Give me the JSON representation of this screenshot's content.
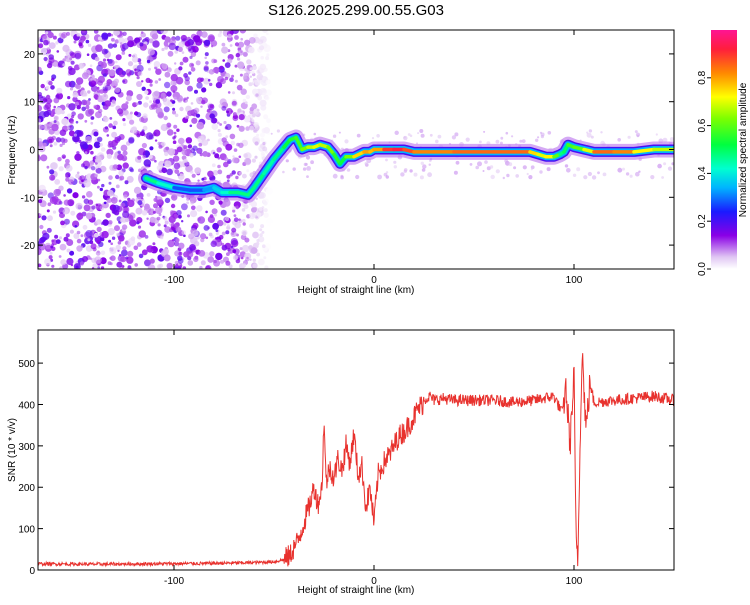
{
  "figure": {
    "title": "S126.2025.299.00.55.G03"
  },
  "chart_data": [
    {
      "type": "heatmap",
      "name": "spectrogram",
      "xlabel": "Height of straight line (km)",
      "ylabel": "Frequency (Hz)",
      "xlim": [
        -168,
        150
      ],
      "ylim": [
        -25,
        25
      ],
      "xticks": [
        -100,
        0,
        100
      ],
      "yticks": [
        -20,
        -10,
        0,
        10,
        20
      ],
      "noise_region_x": [
        -168,
        -60
      ],
      "ridge": {
        "x": [
          -114,
          -108,
          -100,
          -92,
          -85,
          -80,
          -76,
          -72,
          -68,
          -63,
          -60,
          -55,
          -50,
          -45,
          -42,
          -39,
          -36,
          -33,
          -30,
          -27,
          -23,
          -20,
          -17,
          -14,
          -10,
          -5,
          -2,
          0,
          5,
          10,
          15,
          20,
          30,
          40,
          50,
          60,
          70,
          78,
          82,
          86,
          90,
          93,
          95,
          97,
          100,
          105,
          110,
          120,
          130,
          140,
          150
        ],
        "y": [
          -6,
          -7,
          -8,
          -8.5,
          -8.5,
          -8,
          -9,
          -9,
          -9,
          -9.5,
          -8,
          -5,
          -2,
          0.5,
          2,
          2.5,
          0,
          0.5,
          0.5,
          1,
          0.5,
          -1,
          -3,
          -1.5,
          -1.5,
          -0.5,
          -0.5,
          0,
          0,
          0,
          0,
          -0.5,
          -0.5,
          -0.5,
          -0.5,
          -0.5,
          -0.5,
          -0.5,
          -1,
          -1.5,
          -1.5,
          -1,
          -0.5,
          1,
          0.5,
          0,
          -0.5,
          -0.5,
          -0.5,
          0,
          0
        ],
        "amplitude": [
          0.4,
          0.55,
          0.3,
          0.25,
          0.3,
          0.35,
          0.4,
          0.45,
          0.5,
          0.45,
          0.5,
          0.45,
          0.45,
          0.5,
          0.55,
          0.55,
          0.6,
          0.65,
          0.7,
          0.7,
          0.65,
          0.6,
          0.5,
          0.55,
          0.7,
          0.8,
          0.8,
          0.75,
          0.85,
          0.95,
          0.9,
          0.85,
          0.8,
          0.85,
          0.85,
          0.85,
          0.85,
          0.85,
          0.65,
          0.75,
          0.7,
          0.5,
          0.45,
          0.55,
          0.6,
          0.6,
          0.8,
          0.9,
          0.75,
          0.7,
          0.65
        ]
      },
      "colorbar": {
        "label": "Normalized spectral amplitude",
        "ticks": [
          "0.0",
          "0.2",
          "0.4",
          "0.6",
          "0.8"
        ],
        "range": [
          0,
          1
        ]
      }
    },
    {
      "type": "line",
      "name": "snr",
      "xlabel": "Height of straight line (km)",
      "ylabel": "SNR (10 * v/v)",
      "xlim": [
        -168,
        150
      ],
      "ylim": [
        0,
        580
      ],
      "xticks": [
        -100,
        0,
        100
      ],
      "yticks": [
        0,
        100,
        200,
        300,
        400,
        500
      ],
      "series": [
        {
          "name": "SNR",
          "color": "#e8322e",
          "x": [
            -168,
            -140,
            -110,
            -80,
            -60,
            -50,
            -45,
            -42,
            -40,
            -38,
            -36,
            -34,
            -32,
            -30,
            -28,
            -26,
            -25,
            -24,
            -22,
            -20,
            -18,
            -16,
            -14,
            -12,
            -10,
            -8,
            -6,
            -4,
            -2,
            0,
            2,
            4,
            6,
            8,
            10,
            12,
            14,
            16,
            18,
            20,
            22,
            24,
            26,
            28,
            30,
            35,
            40,
            50,
            60,
            70,
            80,
            90,
            94,
            96,
            98,
            100,
            101,
            102,
            103,
            104,
            106,
            108,
            110,
            120,
            130,
            140,
            150
          ],
          "y": [
            15,
            14,
            15,
            16,
            18,
            20,
            25,
            35,
            55,
            70,
            100,
            130,
            160,
            200,
            160,
            200,
            370,
            210,
            250,
            220,
            270,
            240,
            300,
            260,
            330,
            230,
            250,
            150,
            200,
            110,
            230,
            250,
            270,
            280,
            300,
            320,
            330,
            340,
            355,
            370,
            390,
            400,
            415,
            420,
            410,
            415,
            410,
            410,
            410,
            405,
            410,
            420,
            380,
            440,
            300,
            470,
            70,
            30,
            300,
            540,
            340,
            450,
            405,
            410,
            415,
            420,
            410
          ]
        }
      ]
    }
  ]
}
